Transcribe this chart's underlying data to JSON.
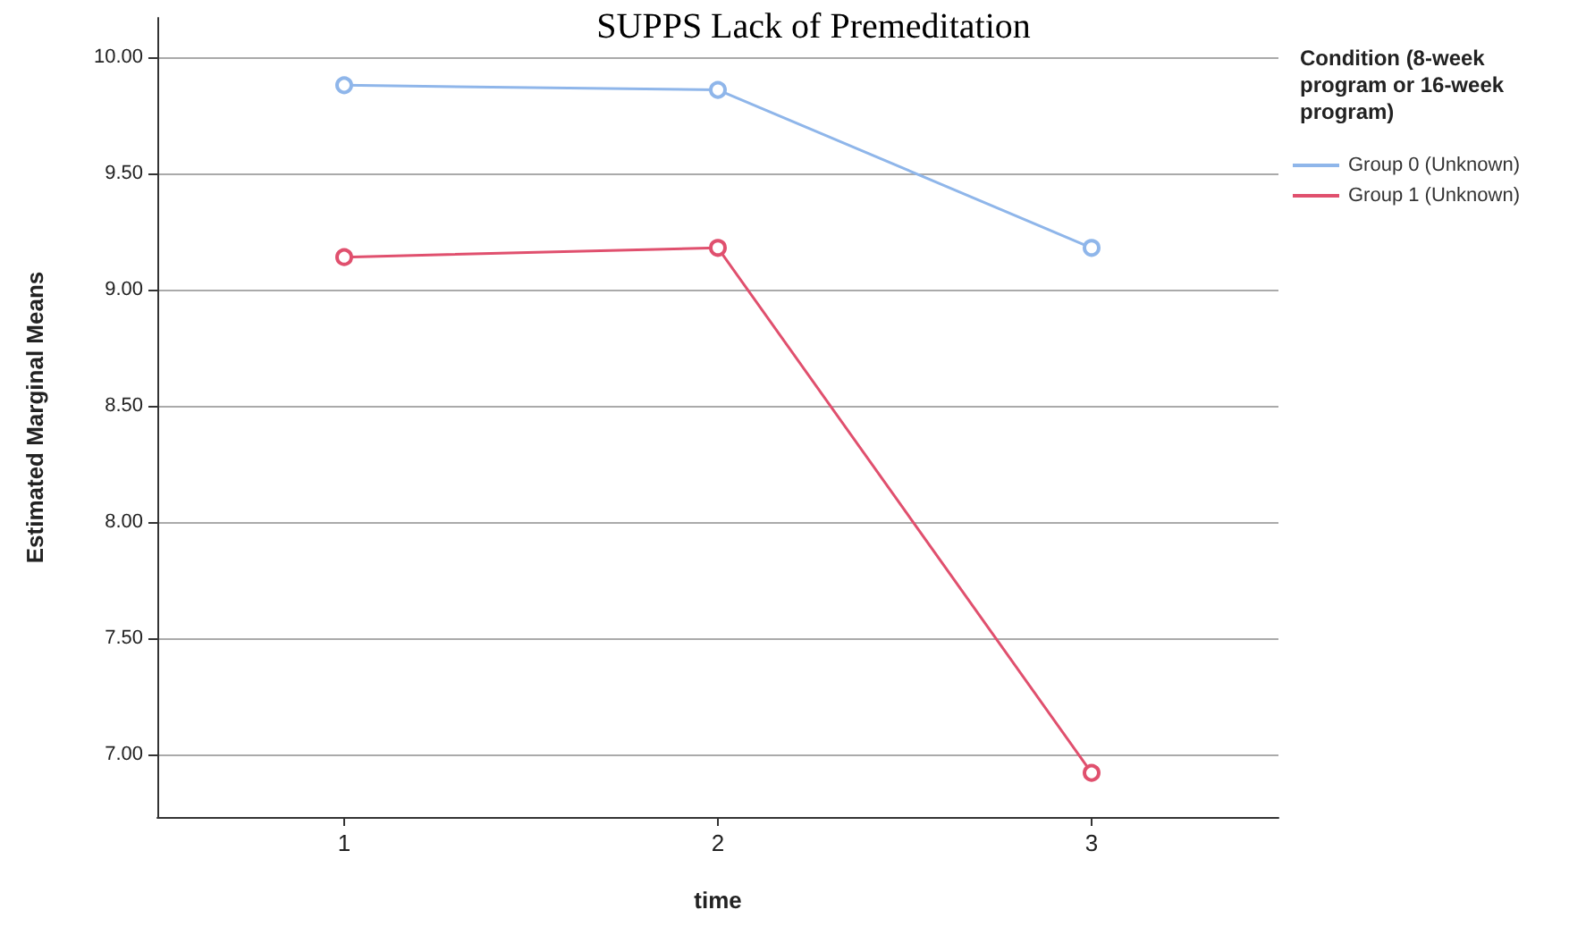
{
  "chart_data": {
    "type": "line",
    "title": "SUPPS Lack of Premeditation",
    "xlabel": "time",
    "ylabel": "Estimated Marginal Means",
    "legend_title": "Condition (8-week program or 16-week program)",
    "categories": [
      "1",
      "2",
      "3"
    ],
    "series": [
      {
        "name": "Group 0 (Unknown)",
        "color": "#8fb6ea",
        "values": [
          9.88,
          9.86,
          9.18
        ]
      },
      {
        "name": "Group 1 (Unknown)",
        "color": "#e0506e",
        "values": [
          9.14,
          9.18,
          6.92
        ]
      }
    ],
    "ylim": [
      6.73,
      10.17
    ],
    "yticks": [
      {
        "value": 7,
        "label": "7.00"
      },
      {
        "value": 7.5,
        "label": "7.50"
      },
      {
        "value": 8,
        "label": "8.00"
      },
      {
        "value": 8.5,
        "label": "8.50"
      },
      {
        "value": 9,
        "label": "9.00"
      },
      {
        "value": 9.5,
        "label": "9.50"
      },
      {
        "value": 10,
        "label": "10.00"
      }
    ],
    "grid": "y",
    "legend": "right",
    "marker": "circle",
    "line_style": "solid"
  }
}
